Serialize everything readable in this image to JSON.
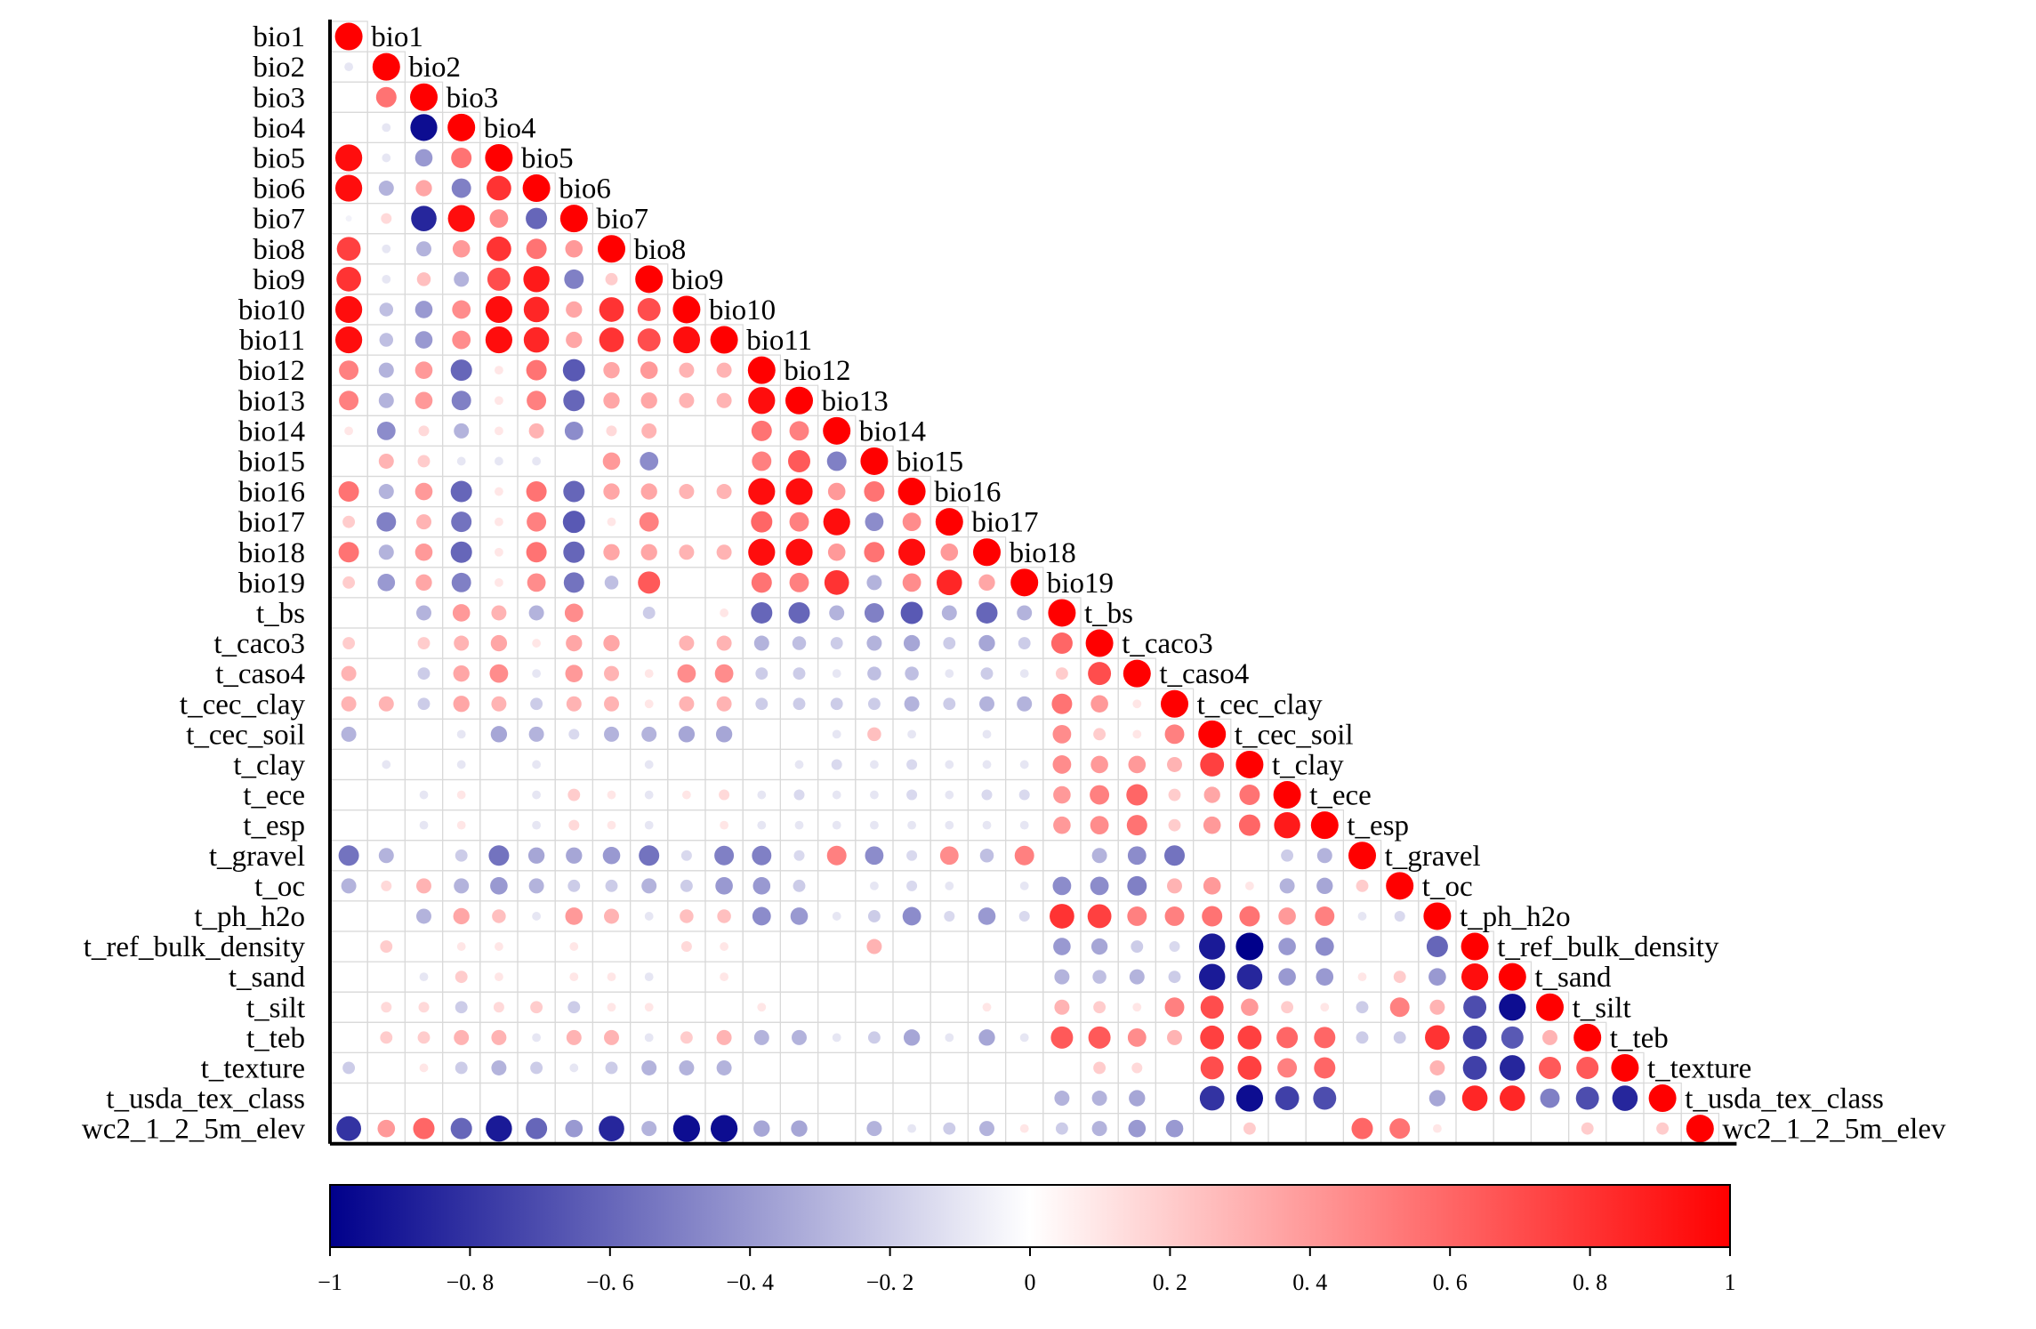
{
  "chart_data": {
    "type": "heatmap",
    "subtype": "correlation-circles-lower-triangle",
    "variables": [
      "bio1",
      "bio2",
      "bio3",
      "bio4",
      "bio5",
      "bio6",
      "bio7",
      "bio8",
      "bio9",
      "bio10",
      "bio11",
      "bio12",
      "bio13",
      "bio14",
      "bio15",
      "bio16",
      "bio17",
      "bio18",
      "bio19",
      "t_bs",
      "t_caco3",
      "t_caso4",
      "t_cec_clay",
      "t_cec_soil",
      "t_clay",
      "t_ece",
      "t_esp",
      "t_gravel",
      "t_oc",
      "t_ph_h2o",
      "t_ref_bulk_density",
      "t_sand",
      "t_silt",
      "t_teb",
      "t_texture",
      "t_usda_tex_class",
      "wc2_1_2_5m_elev"
    ],
    "correlations": [
      [
        1
      ],
      [
        -0.1,
        1
      ],
      [
        0,
        0.55,
        1
      ],
      [
        0,
        -0.1,
        -0.95,
        1
      ],
      [
        0.95,
        -0.1,
        -0.4,
        0.55,
        1
      ],
      [
        0.95,
        -0.3,
        0.35,
        -0.5,
        0.8,
        1
      ],
      [
        -0.05,
        0.15,
        -0.85,
        0.95,
        0.45,
        -0.6,
        1
      ],
      [
        0.75,
        -0.1,
        -0.3,
        0.4,
        0.8,
        0.55,
        0.4,
        1
      ],
      [
        0.8,
        -0.1,
        0.25,
        -0.3,
        0.7,
        0.9,
        -0.5,
        0.2,
        1
      ],
      [
        0.95,
        -0.25,
        -0.4,
        0.45,
        0.95,
        0.85,
        0.35,
        0.8,
        0.7,
        1
      ],
      [
        0.95,
        -0.25,
        -0.4,
        0.45,
        0.95,
        0.85,
        0.35,
        0.8,
        0.7,
        0.95,
        1
      ],
      [
        0.5,
        -0.3,
        0.4,
        -0.6,
        0.1,
        0.55,
        -0.65,
        0.35,
        0.4,
        0.3,
        0.3,
        1
      ],
      [
        0.5,
        -0.3,
        0.4,
        -0.5,
        0.1,
        0.5,
        -0.6,
        0.35,
        0.35,
        0.3,
        0.3,
        0.95,
        1
      ],
      [
        0.1,
        -0.45,
        0.15,
        -0.3,
        0.1,
        0.3,
        -0.45,
        0.15,
        0.3,
        0,
        0,
        0.55,
        0.5,
        1
      ],
      [
        0,
        0.3,
        0.2,
        -0.1,
        -0.1,
        -0.1,
        0,
        0.4,
        -0.45,
        0,
        0,
        0.5,
        0.65,
        -0.5,
        1
      ],
      [
        0.55,
        -0.3,
        0.4,
        -0.6,
        0.1,
        0.55,
        -0.6,
        0.35,
        0.35,
        0.3,
        0.3,
        0.95,
        0.95,
        0.4,
        0.55,
        1
      ],
      [
        0.2,
        -0.5,
        0.3,
        -0.55,
        0.1,
        0.5,
        -0.65,
        0.1,
        0.5,
        0,
        0,
        0.6,
        0.5,
        0.95,
        -0.45,
        0.45,
        1
      ],
      [
        0.55,
        -0.3,
        0.4,
        -0.6,
        0.1,
        0.55,
        -0.6,
        0.35,
        0.35,
        0.3,
        0.3,
        0.95,
        0.95,
        0.4,
        0.55,
        0.95,
        0.4,
        1
      ],
      [
        0.2,
        -0.4,
        0.35,
        -0.5,
        0.1,
        0.45,
        -0.55,
        -0.25,
        0.65,
        0,
        0,
        0.55,
        0.5,
        0.8,
        -0.3,
        0.45,
        0.85,
        0.35,
        1
      ],
      [
        0,
        0,
        -0.3,
        0.4,
        0.3,
        -0.3,
        0.45,
        0,
        -0.2,
        0,
        0.1,
        -0.6,
        -0.6,
        -0.3,
        -0.5,
        -0.65,
        -0.3,
        -0.6,
        -0.3,
        1
      ],
      [
        0.2,
        0,
        0.2,
        0.3,
        0.35,
        0.1,
        0.35,
        0.35,
        0,
        0.3,
        0.3,
        -0.3,
        -0.25,
        -0.2,
        -0.3,
        -0.35,
        -0.2,
        -0.35,
        -0.2,
        0.6,
        1
      ],
      [
        0.3,
        0,
        -0.2,
        0.35,
        0.45,
        -0.1,
        0.4,
        0.3,
        0.1,
        0.45,
        0.45,
        -0.2,
        -0.2,
        -0.1,
        -0.25,
        -0.25,
        -0.1,
        -0.2,
        -0.1,
        0.2,
        0.7,
        1
      ],
      [
        0.3,
        0.3,
        -0.2,
        0.35,
        0.3,
        -0.2,
        0.3,
        0.3,
        0.1,
        0.3,
        0.3,
        -0.2,
        -0.2,
        -0.2,
        -0.2,
        -0.3,
        -0.2,
        -0.3,
        -0.3,
        0.55,
        0.4,
        0.1,
        1
      ],
      [
        -0.3,
        0,
        0,
        -0.1,
        -0.35,
        -0.3,
        -0.15,
        -0.3,
        -0.3,
        -0.35,
        -0.35,
        0,
        0,
        -0.1,
        0.25,
        -0.1,
        0,
        -0.1,
        0,
        0.45,
        0.2,
        0.1,
        0.5,
        1
      ],
      [
        0,
        -0.1,
        0,
        -0.1,
        0,
        -0.1,
        0,
        0,
        -0.1,
        0,
        0,
        0,
        -0.1,
        -0.15,
        -0.1,
        -0.15,
        -0.1,
        -0.1,
        -0.1,
        0.45,
        0.4,
        0.4,
        0.3,
        0.75,
        1
      ],
      [
        0,
        0,
        -0.1,
        0.1,
        0,
        -0.1,
        0.2,
        0.1,
        -0.1,
        0.1,
        0.15,
        -0.1,
        -0.15,
        -0.1,
        -0.1,
        -0.15,
        -0.1,
        -0.15,
        -0.15,
        0.4,
        0.5,
        0.6,
        0.2,
        0.35,
        0.55,
        1
      ],
      [
        0,
        0,
        -0.1,
        0.1,
        0,
        -0.1,
        0.15,
        0.1,
        -0.1,
        0,
        0.1,
        -0.1,
        -0.1,
        -0.1,
        -0.1,
        -0.1,
        -0.1,
        -0.1,
        -0.1,
        0.4,
        0.45,
        0.55,
        0.2,
        0.4,
        0.6,
        0.9,
        1
      ],
      [
        -0.55,
        -0.3,
        0,
        -0.2,
        -0.55,
        -0.35,
        -0.35,
        -0.4,
        -0.55,
        -0.15,
        -0.5,
        -0.5,
        -0.15,
        0.5,
        -0.45,
        -0.15,
        0.45,
        -0.25,
        0.5,
        0,
        -0.3,
        -0.45,
        -0.55,
        0,
        0,
        -0.2,
        -0.3,
        1
      ],
      [
        -0.3,
        0.15,
        0.3,
        -0.3,
        -0.4,
        -0.3,
        -0.2,
        -0.2,
        -0.3,
        -0.2,
        -0.4,
        -0.4,
        -0.2,
        0,
        -0.1,
        -0.15,
        -0.1,
        0,
        -0.1,
        -0.45,
        -0.45,
        -0.5,
        0.3,
        0.4,
        0.1,
        -0.3,
        -0.35,
        0.2,
        1
      ],
      [
        0,
        0,
        -0.3,
        0.35,
        0.25,
        -0.1,
        0.4,
        0.3,
        -0.1,
        0.25,
        0.25,
        -0.45,
        -0.4,
        -0.1,
        -0.2,
        -0.45,
        -0.15,
        -0.4,
        -0.15,
        0.8,
        0.75,
        0.5,
        0.5,
        0.55,
        0.55,
        0.4,
        0.5,
        -0.1,
        -0.15,
        1
      ],
      [
        0,
        0.2,
        0,
        0.1,
        0.1,
        0,
        0.1,
        0,
        0,
        0.15,
        0.1,
        0,
        0,
        0,
        0.3,
        0,
        0,
        0,
        0,
        -0.4,
        -0.35,
        -0.2,
        -0.15,
        -0.9,
        -1,
        -0.4,
        -0.45,
        0,
        0,
        -0.6,
        1
      ],
      [
        0,
        0,
        -0.1,
        0.2,
        0.1,
        0,
        0.1,
        0.1,
        -0.1,
        0,
        0.1,
        0,
        0,
        0,
        0,
        0,
        0,
        0,
        0,
        -0.3,
        -0.25,
        -0.3,
        -0.2,
        -0.9,
        -0.85,
        -0.4,
        -0.4,
        0.1,
        0.2,
        -0.4,
        0.95,
        1
      ],
      [
        0,
        0.15,
        0.15,
        -0.2,
        0.15,
        0.2,
        -0.2,
        0.1,
        0.1,
        0,
        0,
        0.1,
        0,
        0,
        0,
        0,
        0,
        0.1,
        0,
        0.3,
        0.2,
        0.1,
        0.5,
        0.7,
        0.4,
        0.2,
        0.1,
        -0.2,
        0.5,
        0.3,
        -0.7,
        -0.95,
        1
      ],
      [
        0,
        0.2,
        0.2,
        0.3,
        0.3,
        -0.1,
        0.3,
        0.3,
        -0.1,
        0.2,
        0.3,
        -0.3,
        -0.3,
        -0.1,
        -0.2,
        -0.35,
        -0.1,
        -0.35,
        -0.1,
        0.65,
        0.65,
        0.45,
        0.3,
        0.75,
        0.75,
        0.6,
        0.6,
        -0.2,
        -0.2,
        0.8,
        -0.75,
        -0.65,
        0.3,
        1
      ],
      [
        -0.2,
        0,
        0.1,
        -0.2,
        -0.3,
        -0.2,
        -0.1,
        -0.2,
        -0.3,
        -0.3,
        -0.3,
        0,
        0,
        0,
        0,
        0,
        0,
        0,
        0,
        0,
        0.2,
        0.15,
        0,
        0.7,
        0.75,
        0.5,
        0.6,
        0,
        0,
        0.3,
        -0.75,
        -0.85,
        0.65,
        0.65,
        1
      ],
      [
        0,
        0,
        0,
        0,
        0,
        0,
        0,
        0,
        0,
        0,
        0,
        0,
        0,
        0,
        0,
        0,
        0,
        0,
        0,
        -0.3,
        -0.3,
        -0.35,
        0,
        -0.8,
        -0.95,
        -0.75,
        -0.7,
        0,
        0,
        -0.35,
        0.85,
        0.85,
        -0.5,
        -0.7,
        -0.85,
        1
      ],
      [
        -0.8,
        0.4,
        0.6,
        -0.6,
        -0.9,
        -0.6,
        -0.4,
        -0.85,
        -0.3,
        -0.95,
        -0.95,
        -0.35,
        -0.35,
        0,
        -0.3,
        -0.1,
        -0.2,
        -0.3,
        0.1,
        -0.2,
        -0.3,
        -0.4,
        -0.4,
        0,
        0.2,
        0,
        0,
        0.6,
        0.55,
        0.1,
        0,
        0,
        0,
        0.2,
        0,
        0.2,
        1
      ]
    ],
    "colorbar": {
      "range": [
        -1,
        1
      ],
      "ticks": [
        "−1",
        "−0. 8",
        "−0. 6",
        "−0. 4",
        "−0. 2",
        "0",
        "0. 2",
        "0. 4",
        "0. 6",
        "0. 8",
        "1"
      ],
      "colors": {
        "negative": "#00008b",
        "neutral": "#ffffff",
        "positive": "#ff0000"
      }
    },
    "grid": true,
    "legend": "bottom"
  }
}
